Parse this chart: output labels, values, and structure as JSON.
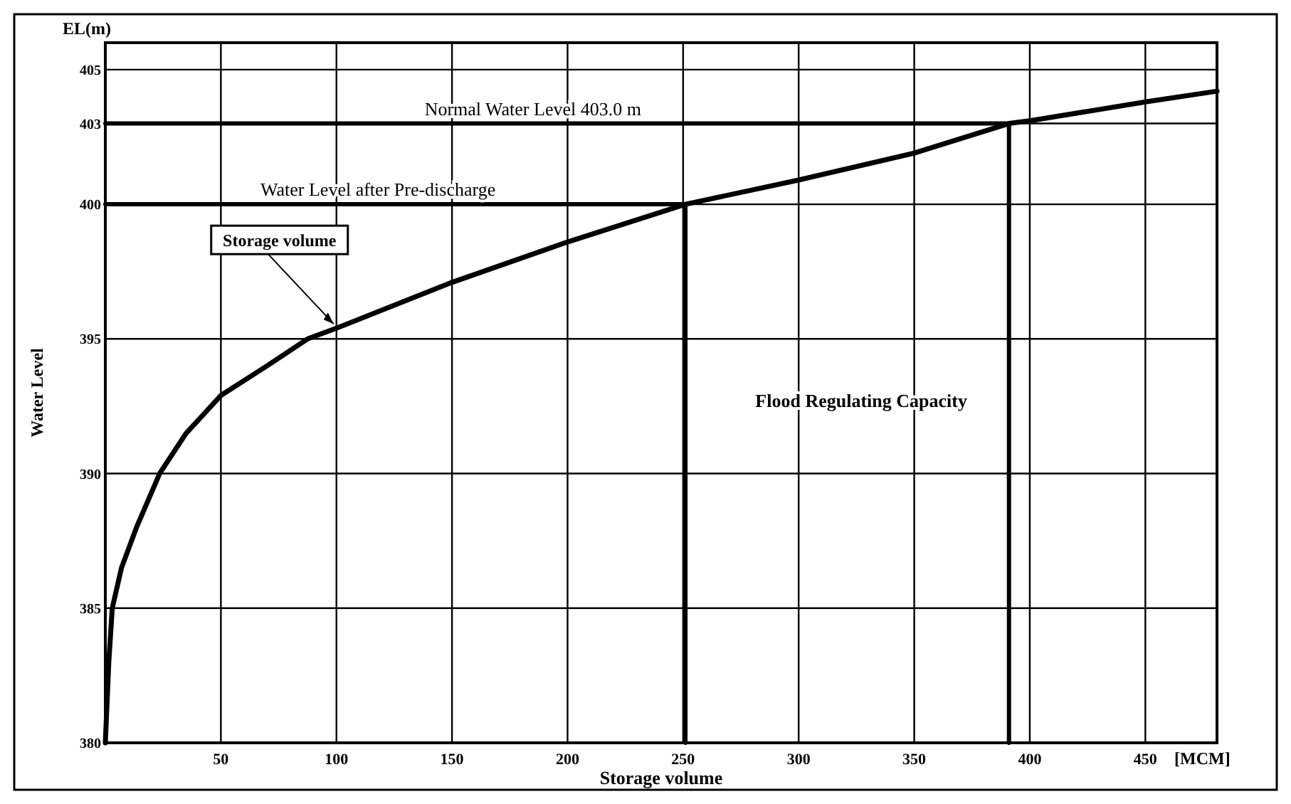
{
  "chart_data": {
    "type": "line",
    "xlabel": "Storage volume",
    "ylabel": "Water Level",
    "xlim": [
      0,
      481
    ],
    "ylim": [
      380,
      406
    ],
    "xticks": [
      50,
      100,
      150,
      200,
      250,
      300,
      350,
      400,
      450
    ],
    "yticks": [
      380,
      385,
      390,
      395,
      400,
      403,
      405
    ],
    "grid": true,
    "marker": "none",
    "line_style": "solid",
    "series": [
      {
        "color": "#000000",
        "x": [
          0,
          0.5,
          1.5,
          3,
          7,
          13.5,
          23.5,
          35,
          50,
          70,
          87.5,
          100,
          150,
          200,
          251,
          300,
          350,
          391,
          400,
          450,
          481
        ],
        "values": [
          380,
          381,
          383,
          385,
          386.5,
          388,
          390,
          391.5,
          392.9,
          394,
          395,
          395.4,
          397.1,
          398.6,
          400,
          400.9,
          401.9,
          403,
          403.1,
          403.8,
          404.2
        ]
      },
      {
        "color": "#000000",
        "x": [
          0,
          391,
          391
        ],
        "values": [
          403,
          403,
          380
        ]
      },
      {
        "color": "#000000",
        "x": [
          0,
          251,
          251
        ],
        "values": [
          400,
          400,
          380
        ]
      }
    ],
    "annotations": [
      "EL(m)",
      "[MCM]",
      {
        "text": "Storage volume",
        "x": 100,
        "y": 395.4
      },
      {
        "text": "Normal Water Level 403.0 m",
        "x": 185,
        "y": 403
      },
      {
        "text": "Water Level after Pre-discharge",
        "x": 118,
        "y": 400
      },
      "Flood Regulating Capacity"
    ]
  }
}
